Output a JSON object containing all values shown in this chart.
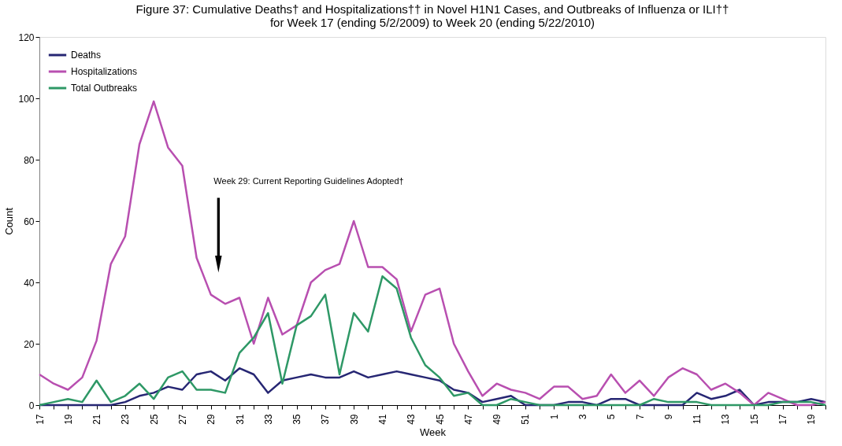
{
  "chart_data": {
    "type": "line",
    "title": "Figure 37: Cumulative Deaths† and Hospitalizations†† in Novel H1N1 Cases, and Outbreaks of Influenza or ILI††\nfor Week 17 (ending 5/2/2009) to Week 20 (ending 5/22/2010)",
    "xlabel": "Week",
    "ylabel": "Count",
    "categories": [
      "17",
      null,
      "19",
      null,
      "21",
      null,
      "23",
      null,
      "25",
      null,
      "27",
      null,
      "29",
      null,
      "31",
      null,
      "33",
      null,
      "35",
      null,
      "37",
      null,
      "39",
      null,
      "41",
      null,
      "43",
      null,
      "45",
      null,
      "47",
      null,
      "49",
      null,
      "51",
      null,
      "1",
      null,
      "3",
      null,
      "5",
      null,
      "7",
      null,
      "9",
      null,
      "11",
      null,
      "13",
      null,
      "15",
      null,
      "17",
      null,
      "19",
      null
    ],
    "series": [
      {
        "name": "Deaths",
        "color": "#262673",
        "values": [
          0,
          0,
          0,
          0,
          0,
          0,
          1,
          3,
          4,
          6,
          5,
          10,
          11,
          8,
          12,
          10,
          4,
          8,
          9,
          10,
          9,
          9,
          11,
          9,
          10,
          11,
          10,
          9,
          8,
          5,
          4,
          1,
          2,
          3,
          0,
          0,
          0,
          1,
          1,
          0,
          2,
          2,
          0,
          0,
          0,
          0,
          4,
          2,
          3,
          5,
          0,
          1,
          1,
          1,
          2,
          1
        ]
      },
      {
        "name": "Hospitalizations",
        "color": "#b84fb0",
        "values": [
          10,
          7,
          5,
          9,
          21,
          46,
          55,
          85,
          99,
          84,
          78,
          48,
          36,
          33,
          35,
          20,
          35,
          23,
          26,
          40,
          44,
          46,
          60,
          45,
          45,
          41,
          24,
          36,
          38,
          20,
          11,
          3,
          7,
          5,
          4,
          2,
          6,
          6,
          2,
          3,
          10,
          4,
          8,
          3,
          9,
          12,
          10,
          5,
          7,
          4,
          0,
          4,
          2,
          0,
          0,
          1
        ]
      },
      {
        "name": "Total Outbreaks",
        "color": "#2e9866",
        "values": [
          0,
          1,
          2,
          1,
          8,
          1,
          3,
          7,
          2,
          9,
          11,
          5,
          5,
          4,
          17,
          22,
          30,
          7,
          26,
          29,
          36,
          10,
          30,
          24,
          42,
          38,
          22,
          13,
          9,
          3,
          4,
          0,
          0,
          2,
          1,
          0,
          0,
          0,
          0,
          0,
          0,
          0,
          0,
          2,
          1,
          1,
          1,
          0,
          0,
          0,
          0,
          0,
          1,
          1,
          1,
          0
        ]
      }
    ],
    "ylim": [
      0,
      120
    ],
    "yticks": [
      0,
      20,
      40,
      60,
      80,
      100,
      120
    ],
    "grid": false,
    "legend": "top left",
    "marker": "none",
    "line_style": "solid",
    "annotations": [
      "Week 29: Current Reporting Guidelines Adopted†"
    ]
  }
}
